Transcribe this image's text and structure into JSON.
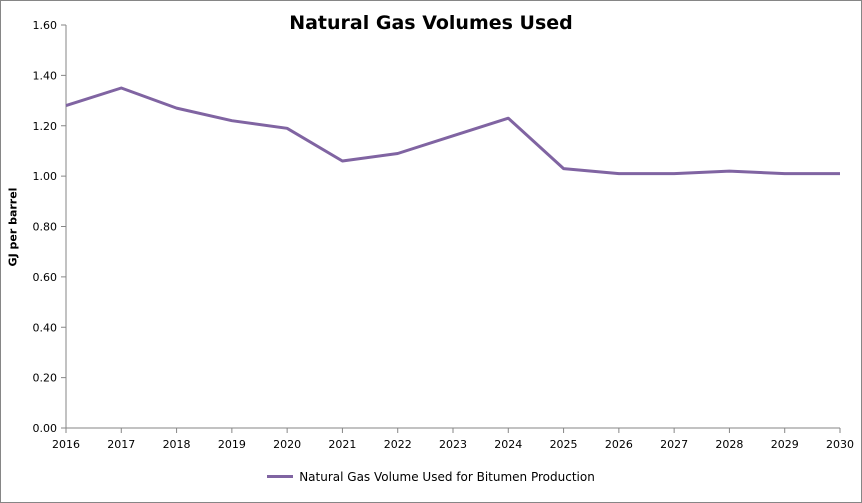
{
  "chart_data": {
    "type": "line",
    "title": "Natural Gas Volumes Used",
    "xlabel": "",
    "ylabel": "GJ per barrel",
    "x": [
      "2016",
      "2017",
      "2018",
      "2019",
      "2020",
      "2021",
      "2022",
      "2023",
      "2024",
      "2025",
      "2026",
      "2027",
      "2028",
      "2029",
      "2030"
    ],
    "series": [
      {
        "name": "Natural Gas Volume Used for Bitumen Production",
        "color": "#8064A2",
        "values": [
          1.28,
          1.35,
          1.27,
          1.22,
          1.19,
          1.06,
          1.09,
          1.16,
          1.23,
          1.03,
          1.01,
          1.01,
          1.02,
          1.01,
          1.01
        ]
      }
    ],
    "ylim": [
      0,
      1.6
    ],
    "yticks": [
      "0.00",
      "0.20",
      "0.40",
      "0.60",
      "0.80",
      "1.00",
      "1.20",
      "1.40",
      "1.60"
    ],
    "grid": false,
    "legend_position": "bottom"
  }
}
